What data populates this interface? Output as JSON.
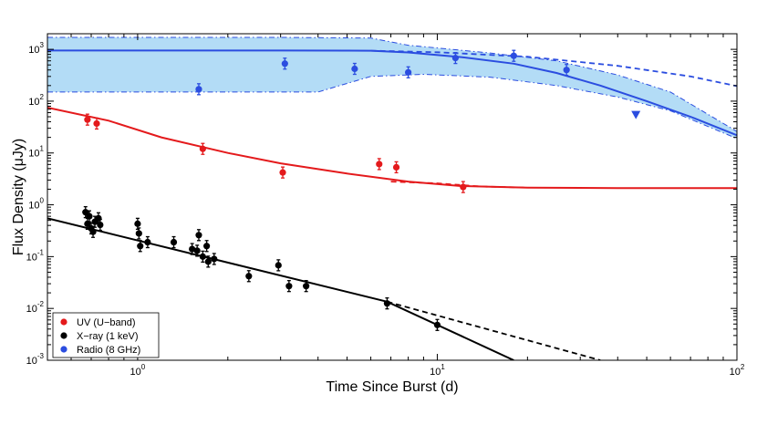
{
  "chart_data": {
    "type": "scatter",
    "xlabel": "Time Since Burst (d)",
    "ylabel": "Flux Density (μJy)",
    "xscale": "log",
    "yscale": "log",
    "xlim": [
      0.5,
      100
    ],
    "ylim": [
      0.001,
      2000
    ],
    "x_ticks": [
      {
        "mant": "10",
        "exp": "0",
        "value": 1
      },
      {
        "mant": "10",
        "exp": "1",
        "value": 10
      },
      {
        "mant": "10",
        "exp": "2",
        "value": 100
      }
    ],
    "y_ticks": [
      {
        "mant": "10",
        "exp": "-3",
        "value": 0.001
      },
      {
        "mant": "10",
        "exp": "-2",
        "value": 0.01
      },
      {
        "mant": "10",
        "exp": "-1",
        "value": 0.1
      },
      {
        "mant": "10",
        "exp": "0",
        "value": 1
      },
      {
        "mant": "10",
        "exp": "1",
        "value": 10
      },
      {
        "mant": "10",
        "exp": "2",
        "value": 100
      },
      {
        "mant": "10",
        "exp": "3",
        "value": 1000
      }
    ],
    "grid": false,
    "legend": {
      "position": "bottom-left",
      "entries": [
        {
          "label": "UV (U−band)",
          "color": "#e41a1c"
        },
        {
          "label": "X−ray (1 keV)",
          "color": "#000000"
        },
        {
          "label": "Radio (8 GHz)",
          "color": "#2b4de0"
        }
      ]
    },
    "series": [
      {
        "color": "#e41a1c",
        "points": [
          {
            "x": 0.68,
            "y": 44
          },
          {
            "x": 0.73,
            "y": 37
          },
          {
            "x": 1.65,
            "y": 12
          },
          {
            "x": 3.05,
            "y": 4.2
          },
          {
            "x": 6.4,
            "y": 6.1
          },
          {
            "x": 7.3,
            "y": 5.3
          },
          {
            "x": 12.2,
            "y": 2.2
          }
        ],
        "model_solid": [
          [
            0.5,
            75
          ],
          [
            0.8,
            42
          ],
          [
            1.2,
            20
          ],
          [
            2,
            10
          ],
          [
            3,
            6.3
          ],
          [
            5,
            4.0
          ],
          [
            8,
            2.8
          ],
          [
            12,
            2.3
          ],
          [
            20,
            2.15
          ],
          [
            40,
            2.1
          ],
          [
            100,
            2.1
          ]
        ],
        "model_dashed": [
          [
            7,
            2.8
          ],
          [
            10,
            2.6
          ],
          [
            14,
            2.25
          ],
          [
            20,
            2.15
          ]
        ]
      },
      {
        "color": "#000000",
        "points": [
          {
            "x": 0.67,
            "y": 0.72
          },
          {
            "x": 0.68,
            "y": 0.43
          },
          {
            "x": 0.69,
            "y": 0.6
          },
          {
            "x": 0.7,
            "y": 0.35
          },
          {
            "x": 0.71,
            "y": 0.3
          },
          {
            "x": 0.72,
            "y": 0.47
          },
          {
            "x": 0.74,
            "y": 0.55
          },
          {
            "x": 0.75,
            "y": 0.41
          },
          {
            "x": 1.0,
            "y": 0.43
          },
          {
            "x": 1.01,
            "y": 0.28
          },
          {
            "x": 1.02,
            "y": 0.16
          },
          {
            "x": 1.08,
            "y": 0.19
          },
          {
            "x": 1.32,
            "y": 0.19
          },
          {
            "x": 1.52,
            "y": 0.14
          },
          {
            "x": 1.58,
            "y": 0.13
          },
          {
            "x": 1.6,
            "y": 0.26
          },
          {
            "x": 1.65,
            "y": 0.1
          },
          {
            "x": 1.7,
            "y": 0.16
          },
          {
            "x": 1.72,
            "y": 0.08
          },
          {
            "x": 1.8,
            "y": 0.09
          },
          {
            "x": 2.35,
            "y": 0.042
          },
          {
            "x": 2.95,
            "y": 0.068
          },
          {
            "x": 3.2,
            "y": 0.027
          },
          {
            "x": 3.65,
            "y": 0.027
          },
          {
            "x": 6.8,
            "y": 0.0125
          },
          {
            "x": 10.0,
            "y": 0.0048
          }
        ],
        "model_solid": [
          [
            0.5,
            0.55
          ],
          [
            6.8,
            0.0135
          ],
          [
            18,
            0.001
          ]
        ],
        "model_dashed": [
          [
            6.8,
            0.0135
          ],
          [
            35,
            0.001
          ]
        ]
      },
      {
        "color": "#2b4de0",
        "points": [
          {
            "x": 1.6,
            "y": 170
          },
          {
            "x": 3.1,
            "y": 530
          },
          {
            "x": 5.3,
            "y": 420
          },
          {
            "x": 8.0,
            "y": 360
          },
          {
            "x": 11.5,
            "y": 680
          },
          {
            "x": 18.0,
            "y": 750
          },
          {
            "x": 27.0,
            "y": 400
          }
        ],
        "upper_limits": [
          {
            "x": 46,
            "y": 55
          }
        ],
        "model_solid": [
          [
            0.5,
            950
          ],
          [
            3,
            950
          ],
          [
            6,
            940
          ],
          [
            8,
            870
          ],
          [
            12,
            710
          ],
          [
            18,
            530
          ],
          [
            25,
            350
          ],
          [
            35,
            200
          ],
          [
            50,
            100
          ],
          [
            70,
            50
          ],
          [
            100,
            22
          ]
        ],
        "model_dashed": [
          [
            6,
            940
          ],
          [
            10,
            880
          ],
          [
            20,
            720
          ],
          [
            40,
            480
          ],
          [
            70,
            300
          ],
          [
            100,
            195
          ]
        ],
        "band_upper": [
          [
            0.5,
            1700
          ],
          [
            3,
            1700
          ],
          [
            6,
            1650
          ],
          [
            8,
            1200
          ],
          [
            15,
            850
          ],
          [
            25,
            600
          ],
          [
            40,
            320
          ],
          [
            60,
            150
          ],
          [
            100,
            26
          ]
        ],
        "band_lower": [
          [
            0.5,
            150
          ],
          [
            4,
            150
          ],
          [
            5,
            220
          ],
          [
            6,
            300
          ],
          [
            9,
            330
          ],
          [
            15,
            290
          ],
          [
            25,
            200
          ],
          [
            40,
            120
          ],
          [
            60,
            65
          ],
          [
            100,
            19
          ]
        ],
        "band_color": "#b3dcf6"
      }
    ]
  }
}
